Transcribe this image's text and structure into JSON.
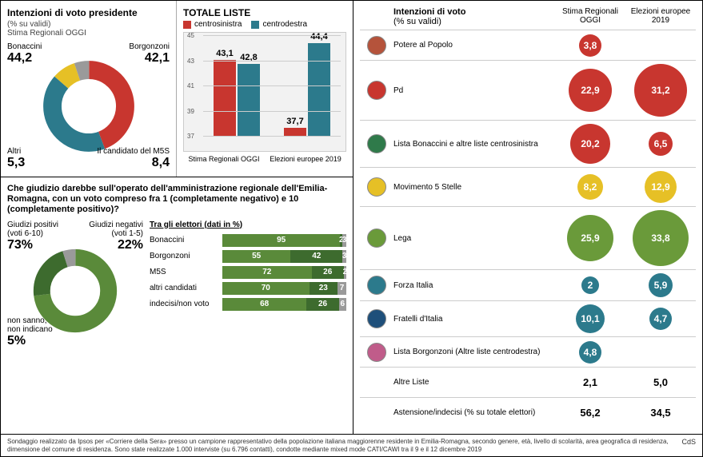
{
  "colors": {
    "red": "#c8362f",
    "teal": "#2c7a8c",
    "yellow": "#e6c026",
    "green": "#5a8a3a",
    "dgreen": "#3d6b2e",
    "grey": "#9a9a9a",
    "dk": "#2b2b2b"
  },
  "president": {
    "title": "Intenzioni di voto presidente",
    "subtitle": "(% su validi)",
    "sub2": "Stima Regionali OGGI",
    "items": [
      {
        "label": "Bonaccini",
        "value": "44,2",
        "pct": 44.2,
        "color": "#c8362f"
      },
      {
        "label": "Borgonzoni",
        "value": "42,1",
        "pct": 42.1,
        "color": "#2c7a8c"
      },
      {
        "label": "Il candidato del M5S",
        "value": "8,4",
        "pct": 8.4,
        "color": "#e6c026"
      },
      {
        "label": "Altri",
        "value": "5,3",
        "pct": 5.3,
        "color": "#9a9a9a"
      }
    ]
  },
  "totale": {
    "title": "TOTALE LISTE",
    "legend": [
      {
        "label": "centrosinistra",
        "color": "#c8362f"
      },
      {
        "label": "centrodestra",
        "color": "#2c7a8c"
      }
    ],
    "ymin": 37,
    "ymax": 45,
    "ystep": 2,
    "groups": [
      {
        "label": "Stima Regionali OGGI",
        "bars": [
          {
            "v": 43.1,
            "lbl": "43,1",
            "color": "#c8362f"
          },
          {
            "v": 42.8,
            "lbl": "42,8",
            "color": "#2c7a8c"
          }
        ]
      },
      {
        "label": "Elezioni europee 2019",
        "bars": [
          {
            "v": 37.7,
            "lbl": "37,7",
            "color": "#c8362f"
          },
          {
            "v": 44.4,
            "lbl": "44,4",
            "color": "#2c7a8c"
          }
        ]
      }
    ]
  },
  "giudizio": {
    "question": "Che giudizio darebbe sull'operato dell'amministrazione regionale dell'Emilia-Romagna, con un voto compreso fra 1 (completamente negativo) e 10 (completamente positivo)?",
    "donut": [
      {
        "label": "Giudizi positivi (voti 6-10)",
        "value": "73%",
        "pct": 73,
        "color": "#5a8a3a"
      },
      {
        "label": "Giudizi negativi (voti 1-5)",
        "value": "22%",
        "pct": 22,
        "color": "#3d6b2e"
      },
      {
        "label": "non sanno, non indicano",
        "value": "5%",
        "pct": 5,
        "color": "#9a9a9a"
      }
    ],
    "elet_title": "Tra gli elettori (dati in %)",
    "rows": [
      {
        "name": "Bonaccini",
        "segs": [
          [
            95,
            "#5a8a3a"
          ],
          [
            2,
            "#3d6b2e"
          ],
          [
            3,
            "#9a9a9a"
          ]
        ]
      },
      {
        "name": "Borgonzoni",
        "segs": [
          [
            55,
            "#5a8a3a"
          ],
          [
            42,
            "#3d6b2e"
          ],
          [
            3,
            "#9a9a9a"
          ]
        ]
      },
      {
        "name": "M5S",
        "segs": [
          [
            72,
            "#5a8a3a"
          ],
          [
            26,
            "#3d6b2e"
          ],
          [
            2,
            "#9a9a9a"
          ]
        ]
      },
      {
        "name": "altri candidati",
        "segs": [
          [
            70,
            "#5a8a3a"
          ],
          [
            23,
            "#3d6b2e"
          ],
          [
            7,
            "#9a9a9a"
          ]
        ]
      },
      {
        "name": "indecisi/non voto",
        "segs": [
          [
            68,
            "#5a8a3a"
          ],
          [
            26,
            "#3d6b2e"
          ],
          [
            6,
            "#9a9a9a"
          ]
        ]
      }
    ]
  },
  "right": {
    "title": "Intenzioni di voto",
    "subtitle": "(% su validi)",
    "c3": "Stima Regionali OGGI",
    "c4": "Elezioni europee 2019",
    "rows": [
      {
        "name": "Potere al Popolo",
        "logo": "#b5533b",
        "c3": {
          "v": "3,8",
          "size": 28,
          "color": "#c8362f"
        },
        "c4": null
      },
      {
        "name": "Pd",
        "logo": "#c8362f",
        "c3": {
          "v": "22,9",
          "size": 54,
          "color": "#c8362f"
        },
        "c4": {
          "v": "31,2",
          "size": 66,
          "color": "#c8362f"
        }
      },
      {
        "name": "Lista Bonaccini e altre liste centrosinistra",
        "logo": "#2f7a4a",
        "c3": {
          "v": "20,2",
          "size": 50,
          "color": "#c8362f"
        },
        "c4": {
          "v": "6,5",
          "size": 30,
          "color": "#c8362f"
        }
      },
      {
        "name": "Movimento 5 Stelle",
        "logo": "#e6c026",
        "c3": {
          "v": "8,2",
          "size": 32,
          "color": "#e6c026"
        },
        "c4": {
          "v": "12,9",
          "size": 40,
          "color": "#e6c026"
        }
      },
      {
        "name": "Lega",
        "logo": "#6a9a3a",
        "c3": {
          "v": "25,9",
          "size": 58,
          "color": "#6a9a3a"
        },
        "c4": {
          "v": "33,8",
          "size": 70,
          "color": "#6a9a3a"
        }
      },
      {
        "name": "Forza Italia",
        "logo": "#2c7a8c",
        "c3": {
          "v": "2",
          "size": 22,
          "color": "#2c7a8c"
        },
        "c4": {
          "v": "5,9",
          "size": 30,
          "color": "#2c7a8c"
        }
      },
      {
        "name": "Fratelli d'Italia",
        "logo": "#1e4f7a",
        "c3": {
          "v": "10,1",
          "size": 36,
          "color": "#2c7a8c"
        },
        "c4": {
          "v": "4,7",
          "size": 28,
          "color": "#2c7a8c"
        }
      },
      {
        "name": "Lista Borgonzoni (Altre liste centrodestra)",
        "logo": "#c05c8a",
        "c3": {
          "v": "4,8",
          "size": 28,
          "color": "#2c7a8c"
        },
        "c4": null
      },
      {
        "name": "Altre Liste",
        "logo": null,
        "c3": {
          "v": "2,1",
          "size": 0,
          "color": null
        },
        "c4": {
          "v": "5,0",
          "size": 0,
          "color": "#9a9a9a"
        }
      },
      {
        "name": "Astensione/indecisi (% su totale elettori)",
        "logo": null,
        "c3": {
          "v": "56,2",
          "size": 0,
          "color": null
        },
        "c4": {
          "v": "34,5",
          "size": 0,
          "color": null
        }
      }
    ]
  },
  "footnote": "Sondaggio realizzato da Ipsos per «Corriere della Sera» presso un campione rappresentativo della popolazione italiana maggiorenne residente in Emilia-Romagna, secondo genere, età, livello di scolarità, area geografica di residenza, dimensione del comune di residenza. Sono state realizzate 1.000 interviste (su 6.796 contatti), condotte mediante mixed mode CATI/CAWI tra il 9 e il 12 dicembre 2019",
  "src": "CdS"
}
